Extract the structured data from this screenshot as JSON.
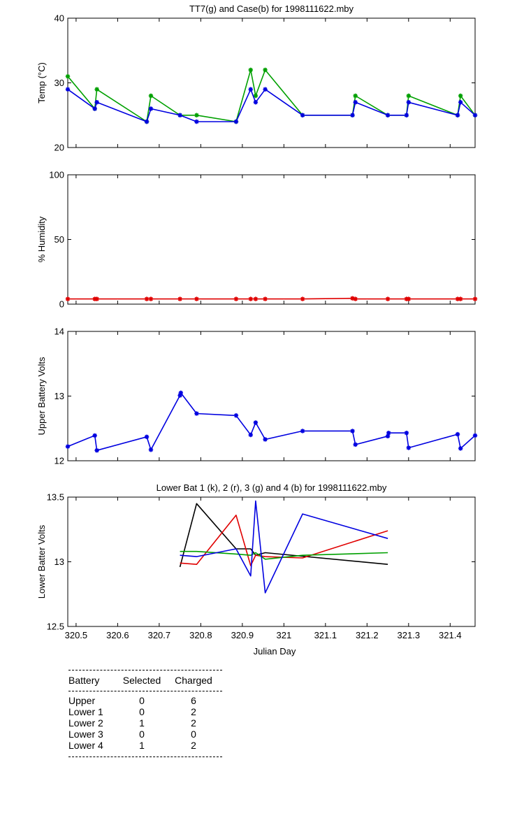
{
  "chart_data": [
    {
      "type": "line",
      "title": "TT7(g) and Case(b) for 1998111622.mby",
      "xlabel": "",
      "ylabel": "Temp  (°C)",
      "xlim": [
        320.48,
        321.46
      ],
      "ylim": [
        20,
        40
      ],
      "yticks": [
        "20",
        "30",
        "40"
      ],
      "series": [
        {
          "color": "#00a000",
          "marker": "*",
          "x": [
            320.48,
            320.545,
            320.55,
            320.67,
            320.68,
            320.75,
            320.79,
            320.885,
            320.92,
            320.932,
            320.955,
            321.045,
            321.165,
            321.172,
            321.25,
            321.295,
            321.3,
            321.418,
            321.425,
            321.46
          ],
          "y": [
            31,
            26,
            29,
            24,
            28,
            25,
            25,
            24,
            32,
            28,
            32,
            25,
            25,
            28,
            25,
            25,
            28,
            25,
            28,
            25
          ]
        },
        {
          "color": "#0000e0",
          "marker": "*",
          "x": [
            320.48,
            320.545,
            320.55,
            320.67,
            320.68,
            320.75,
            320.79,
            320.885,
            320.92,
            320.932,
            320.955,
            321.045,
            321.165,
            321.172,
            321.25,
            321.295,
            321.3,
            321.418,
            321.425,
            321.46
          ],
          "y": [
            29,
            26,
            27,
            24,
            26,
            25,
            24,
            24,
            29,
            27,
            29,
            25,
            25,
            27,
            25,
            25,
            27,
            25,
            27,
            25
          ]
        }
      ]
    },
    {
      "type": "line",
      "title": "",
      "xlabel": "",
      "ylabel": "% Humidity",
      "xlim": [
        320.48,
        321.46
      ],
      "ylim": [
        0,
        100
      ],
      "yticks": [
        "0",
        "50",
        "100"
      ],
      "series": [
        {
          "color": "#e00000",
          "marker": "*",
          "x": [
            320.48,
            320.545,
            320.55,
            320.67,
            320.68,
            320.75,
            320.79,
            320.885,
            320.92,
            320.932,
            320.955,
            321.045,
            321.165,
            321.172,
            321.25,
            321.295,
            321.3,
            321.418,
            321.425,
            321.46
          ],
          "y": [
            4,
            4,
            4,
            4,
            4,
            4,
            4,
            4,
            4,
            4,
            4,
            4,
            4.5,
            4,
            4,
            4,
            4,
            4,
            4,
            4
          ]
        }
      ]
    },
    {
      "type": "line",
      "title": "",
      "xlabel": "",
      "ylabel": "Upper Battery Volts",
      "xlim": [
        320.48,
        321.46
      ],
      "ylim": [
        12,
        14
      ],
      "yticks": [
        "12",
        "13",
        "14"
      ],
      "series": [
        {
          "color": "#0000e0",
          "marker": "*",
          "x": [
            320.48,
            320.545,
            320.55,
            320.67,
            320.68,
            320.75,
            320.752,
            320.79,
            320.885,
            320.92,
            320.932,
            320.955,
            321.045,
            321.165,
            321.172,
            321.25,
            321.252,
            321.295,
            321.3,
            321.418,
            321.425,
            321.46
          ],
          "y": [
            12.22,
            12.39,
            12.16,
            12.37,
            12.17,
            13.01,
            13.05,
            12.73,
            12.7,
            12.4,
            12.59,
            12.33,
            12.46,
            12.46,
            12.25,
            12.38,
            12.43,
            12.43,
            12.2,
            12.41,
            12.19,
            12.39
          ]
        }
      ]
    },
    {
      "type": "line",
      "title": "Lower Bat 1 (k), 2 (r), 3 (g) and 4 (b) for 1998111622.mby",
      "xlabel": "Julian Day",
      "ylabel": "Lower Batter Volts",
      "xlim": [
        320.48,
        321.46
      ],
      "ylim": [
        12.5,
        13.5
      ],
      "yticks": [
        "12.5",
        "13",
        "13.5"
      ],
      "xticks": [
        "320.5",
        "320.6",
        "320.7",
        "320.8",
        "320.9",
        "321",
        "321.1",
        "321.2",
        "321.3",
        "321.4"
      ],
      "xtick_values": [
        320.5,
        320.6,
        320.7,
        320.8,
        320.9,
        321.0,
        321.1,
        321.2,
        321.3,
        321.4
      ],
      "series": [
        {
          "color": "#000000",
          "x": [
            320.75,
            320.79,
            320.885,
            320.92,
            320.932,
            320.955,
            321.25
          ],
          "y": [
            12.96,
            13.45,
            13.1,
            13.1,
            13.05,
            13.07,
            12.98
          ]
        },
        {
          "color": "#e00000",
          "x": [
            320.75,
            320.79,
            320.885,
            320.92,
            320.932,
            320.955,
            321.045,
            321.25
          ],
          "y": [
            12.99,
            12.98,
            13.36,
            12.97,
            13.05,
            13.04,
            13.03,
            13.24
          ]
        },
        {
          "color": "#00a000",
          "x": [
            320.75,
            320.79,
            320.885,
            320.92,
            320.932,
            320.955,
            321.045,
            321.25
          ],
          "y": [
            13.08,
            13.08,
            13.06,
            13.05,
            13.07,
            13.02,
            13.05,
            13.07
          ]
        },
        {
          "color": "#0000e0",
          "x": [
            320.75,
            320.79,
            320.885,
            320.92,
            320.932,
            320.955,
            321.045,
            321.25
          ],
          "y": [
            13.05,
            13.04,
            13.1,
            12.89,
            13.47,
            12.76,
            13.37,
            13.18
          ]
        }
      ]
    }
  ],
  "battery_table": {
    "headers": [
      "Battery",
      "Selected",
      "Charged"
    ],
    "rows": [
      [
        "Upper",
        "0",
        "6"
      ],
      [
        "Lower 1",
        "0",
        "2"
      ],
      [
        "Lower 2",
        "1",
        "2"
      ],
      [
        "Lower 3",
        "0",
        "0"
      ],
      [
        "Lower 4",
        "1",
        "2"
      ]
    ]
  }
}
